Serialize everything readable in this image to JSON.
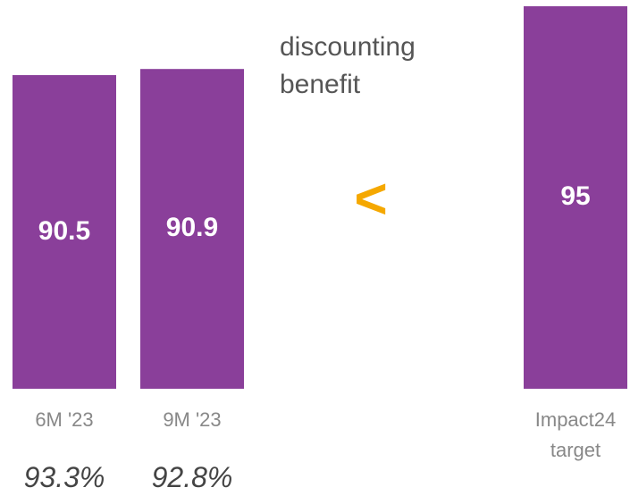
{
  "chart_data": {
    "type": "bar",
    "categories": [
      "6M '23",
      "9M '23",
      null,
      null,
      "Impact24 target"
    ],
    "values": [
      90.5,
      90.9,
      null,
      null,
      95
    ],
    "color": "#8a3f9a",
    "ylim": [
      70,
      95
    ],
    "ratio_labels": [
      "93.3%",
      "92.8%"
    ],
    "annotations": [
      "discounting benefit",
      "<"
    ]
  }
}
